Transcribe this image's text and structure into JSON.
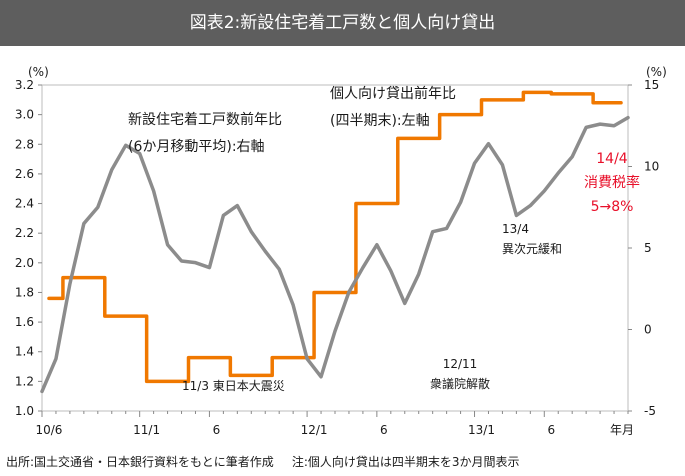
{
  "title": "図表2:新設住宅着工戸数と個人向け貸出",
  "chart_data": {
    "type": "line",
    "x_tick_labels": [
      "10/6",
      "11/1",
      "6",
      "12/1",
      "6",
      "13/1",
      "6"
    ],
    "x_unit_label": "年月",
    "left_axis": {
      "unit": "(%)",
      "ylim": [
        1.0,
        3.2
      ],
      "ticks": [
        "1.0",
        "1.2",
        "1.4",
        "1.6",
        "1.8",
        "2.0",
        "2.2",
        "2.4",
        "2.6",
        "2.8",
        "3.0",
        "3.2"
      ]
    },
    "right_axis": {
      "unit": "(%)",
      "ylim": [
        -5,
        15
      ],
      "ticks": [
        "-5",
        "0",
        "5",
        "10",
        "15"
      ]
    },
    "series": [
      {
        "label_lines": [
          "個人向け貸出前年比",
          "(四半期末):左軸"
        ],
        "axis": "left",
        "color": "#f07800",
        "step": true,
        "values": [
          1.76,
          1.9,
          1.9,
          1.9,
          1.64,
          1.64,
          1.64,
          1.2,
          1.2,
          1.2,
          1.36,
          1.36,
          1.36,
          1.24,
          1.24,
          1.24,
          1.36,
          1.36,
          1.36,
          1.8,
          1.8,
          1.8,
          2.4,
          2.4,
          2.4,
          2.84,
          2.84,
          2.84,
          3.0,
          3.0,
          3.0,
          3.1,
          3.1,
          3.1,
          3.15,
          3.15,
          3.14,
          3.14,
          3.14,
          3.08,
          3.08,
          3.08
        ]
      },
      {
        "label_lines": [
          "新設住宅着工戸数前年比",
          "(6か月移動平均):右軸"
        ],
        "axis": "right",
        "color": "#8c8c8c",
        "step": false,
        "values": [
          -3.8,
          -1.8,
          2.8,
          6.5,
          7.5,
          9.8,
          11.3,
          10.8,
          8.5,
          5.2,
          4.2,
          4.1,
          3.8,
          7,
          7.6,
          6,
          4.8,
          3.7,
          1.5,
          -1.8,
          -2.9,
          -0.1,
          2.3,
          3.8,
          5.2,
          3.6,
          1.6,
          3.4,
          6,
          6.2,
          7.8,
          10.2,
          11.4,
          10.1,
          7,
          7.6,
          8.5,
          9.6,
          10.6,
          12.4,
          12.6,
          12.5,
          13
        ]
      }
    ],
    "annotations": [
      {
        "key": "earthquake",
        "lines": [
          "11/3 東日本大震災"
        ],
        "color": "#1a1a1a"
      },
      {
        "key": "election",
        "lines": [
          "12/11",
          "衆議院解散"
        ],
        "color": "#1a1a1a"
      },
      {
        "key": "boj",
        "lines": [
          "13/4",
          "異次元緩和"
        ],
        "color": "#1a1a1a"
      },
      {
        "key": "tax",
        "lines": [
          "14/4",
          "消費税率",
          "5→8%"
        ],
        "color": "#e8102a"
      }
    ]
  },
  "footer": {
    "source": "出所:国土交通省・日本銀行資料をもとに筆者作成",
    "note": "注:個人向け貸出は四半期末を3か月間表示"
  }
}
